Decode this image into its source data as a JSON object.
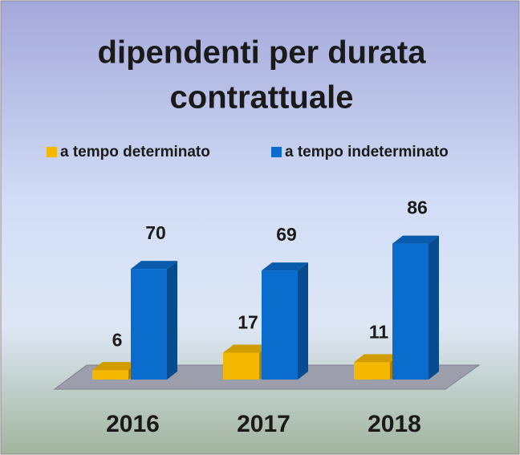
{
  "chart_data": {
    "type": "bar3d",
    "title": "dipendenti per durata contrattuale",
    "categories": [
      "2016",
      "2017",
      "2018"
    ],
    "series": [
      {
        "name": "a tempo determinato",
        "color": "#f5b800",
        "values": [
          6,
          17,
          11
        ]
      },
      {
        "name": "a tempo indeterminato",
        "color": "#0a6ccc",
        "values": [
          70,
          69,
          86
        ]
      }
    ],
    "legend": "top"
  }
}
